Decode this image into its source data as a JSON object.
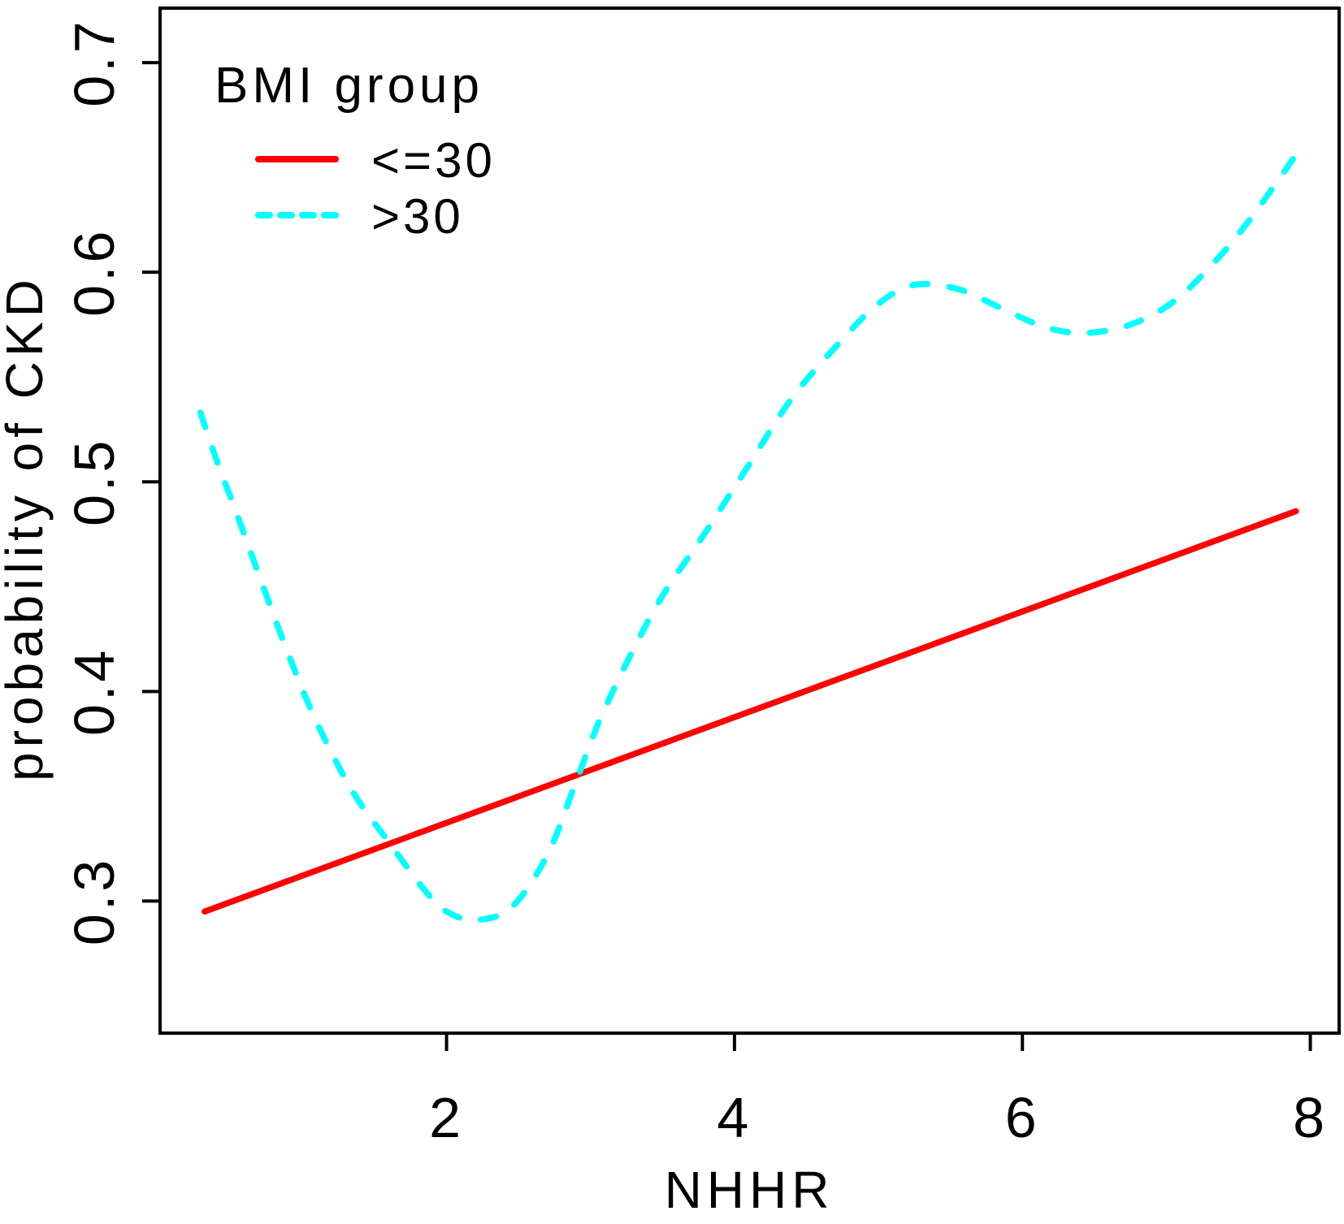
{
  "chart_data": {
    "type": "line",
    "title": "",
    "xlabel": "NHHR",
    "ylabel": "probability of CKD",
    "xlim": [
      0.01,
      8.2
    ],
    "ylim": [
      0.237,
      0.726
    ],
    "xticks": [
      2,
      4,
      6,
      8
    ],
    "yticks": [
      0.3,
      0.4,
      0.5,
      0.6,
      0.7
    ],
    "ytick_decimals": 1,
    "grid": false,
    "background": "#ffffff",
    "axis_color": "#000000",
    "legend": {
      "title": "BMI group",
      "position": "top-left"
    },
    "series": [
      {
        "name": "<=30",
        "color": "#ff0000",
        "line_style": "solid",
        "smooth": false,
        "x": [
          0.32,
          7.9
        ],
        "y": [
          0.295,
          0.486
        ]
      },
      {
        "name": ">30",
        "color": "#00ffff",
        "line_style": "dashed",
        "smooth": true,
        "x": [
          0.29,
          0.42,
          0.52,
          0.7,
          0.9,
          1.1,
          1.35,
          1.6,
          1.85,
          2.0,
          2.2,
          2.45,
          2.7,
          2.9,
          3.1,
          3.46,
          3.78,
          4.09,
          4.4,
          4.75,
          5.0,
          5.25,
          5.55,
          5.85,
          6.15,
          6.43,
          6.75,
          7.05,
          7.35,
          7.6,
          7.9
        ],
        "y": [
          0.533,
          0.507,
          0.489,
          0.455,
          0.418,
          0.385,
          0.352,
          0.328,
          0.305,
          0.295,
          0.291,
          0.297,
          0.322,
          0.357,
          0.392,
          0.441,
          0.474,
          0.507,
          0.54,
          0.568,
          0.585,
          0.594,
          0.592,
          0.583,
          0.574,
          0.571,
          0.575,
          0.586,
          0.606,
          0.627,
          0.656
        ]
      }
    ]
  }
}
